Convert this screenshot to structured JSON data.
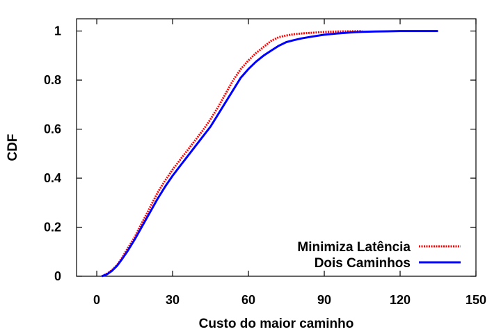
{
  "chart_data": {
    "type": "line",
    "title": "",
    "xlabel": "Custo do maior caminho",
    "ylabel": "CDF",
    "xlim": [
      -8,
      150
    ],
    "ylim": [
      0,
      1.05
    ],
    "xticks": [
      0,
      30,
      60,
      90,
      120,
      150
    ],
    "yticks": [
      0,
      0.2,
      0.4,
      0.6,
      0.8,
      1
    ],
    "ytick_labels": [
      "0",
      "0.2",
      "0.4",
      "0.6",
      "0.8",
      "1"
    ],
    "grid": false,
    "legend_position": "bottom-right",
    "series": [
      {
        "name": "Minimiza Latência",
        "color": "#ff0000",
        "style": "dotted",
        "x": [
          2,
          4,
          6,
          8,
          10,
          12,
          15,
          18,
          21,
          24,
          27,
          30,
          33,
          36,
          39,
          42,
          45,
          48,
          51,
          54,
          57,
          60,
          63,
          66,
          69,
          72,
          75,
          78,
          81,
          85,
          90,
          95,
          100,
          105
        ],
        "y": [
          0,
          0.01,
          0.025,
          0.045,
          0.075,
          0.11,
          0.16,
          0.22,
          0.28,
          0.34,
          0.39,
          0.435,
          0.475,
          0.515,
          0.555,
          0.595,
          0.64,
          0.69,
          0.745,
          0.8,
          0.845,
          0.88,
          0.91,
          0.935,
          0.96,
          0.975,
          0.982,
          0.987,
          0.99,
          0.993,
          0.996,
          0.998,
          0.999,
          1.0
        ]
      },
      {
        "name": "Dois Caminhos",
        "color": "#0000ff",
        "style": "solid",
        "x": [
          2,
          4,
          6,
          8,
          10,
          12,
          15,
          18,
          21,
          24,
          27,
          30,
          33,
          36,
          39,
          42,
          45,
          48,
          51,
          54,
          57,
          60,
          63,
          66,
          69,
          72,
          75,
          78,
          81,
          85,
          90,
          95,
          100,
          105,
          110,
          115,
          120,
          125,
          130,
          135
        ],
        "y": [
          0,
          0.008,
          0.022,
          0.042,
          0.07,
          0.1,
          0.15,
          0.205,
          0.26,
          0.315,
          0.365,
          0.41,
          0.45,
          0.49,
          0.53,
          0.57,
          0.61,
          0.66,
          0.71,
          0.76,
          0.81,
          0.845,
          0.875,
          0.9,
          0.92,
          0.94,
          0.955,
          0.963,
          0.97,
          0.977,
          0.985,
          0.99,
          0.994,
          0.997,
          0.998,
          0.999,
          1.0,
          1.0,
          1.0,
          1.0
        ]
      }
    ]
  }
}
